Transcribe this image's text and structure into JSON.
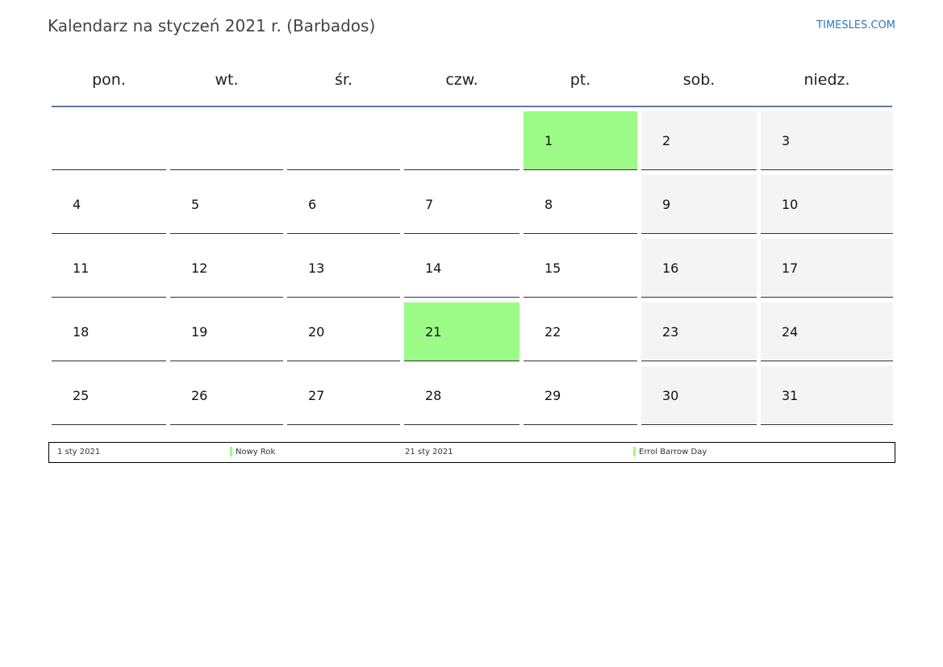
{
  "header": {
    "title": "Kalendarz na styczeń 2021 r. (Barbados)",
    "brand": "TIMESLES.COM",
    "brand_color": "#2d7ab8"
  },
  "calendar": {
    "weekdays": [
      "pon.",
      "wt.",
      "śr.",
      "czw.",
      "pt.",
      "sob.",
      "niedz."
    ],
    "weeks": [
      [
        "",
        "",
        "",
        "",
        "1",
        "2",
        "3"
      ],
      [
        "4",
        "5",
        "6",
        "7",
        "8",
        "9",
        "10"
      ],
      [
        "11",
        "12",
        "13",
        "14",
        "15",
        "16",
        "17"
      ],
      [
        "18",
        "19",
        "20",
        "21",
        "22",
        "23",
        "24"
      ],
      [
        "25",
        "26",
        "27",
        "28",
        "29",
        "30",
        "31"
      ]
    ],
    "holiday_days": [
      "1",
      "21"
    ],
    "holiday_color": "#9cfb86",
    "weekend_color": "#f4f4f4"
  },
  "legend": {
    "items": [
      {
        "date": "1 sty 2021",
        "name": "Nowy Rok"
      },
      {
        "date": "21 sty 2021",
        "name": "Errol Barrow Day"
      }
    ]
  }
}
